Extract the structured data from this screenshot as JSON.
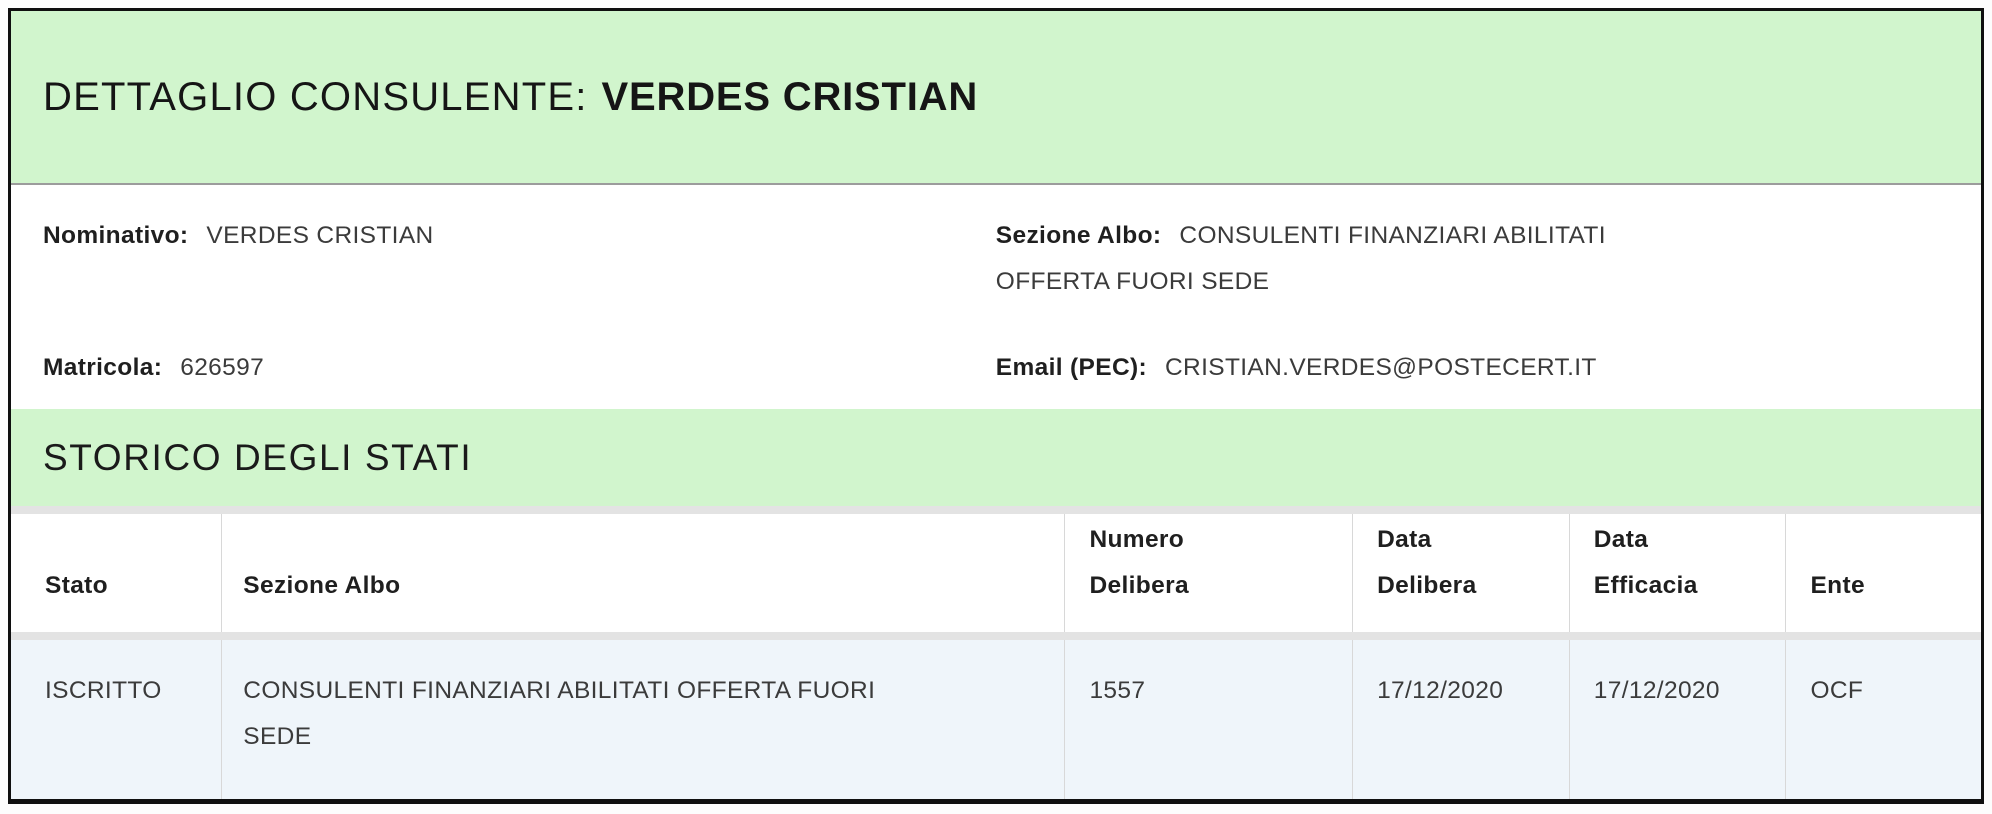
{
  "page": {
    "title_prefix": "DETTAGLIO CONSULENTE:",
    "title_name": "VERDES CRISTIAN"
  },
  "details": {
    "fields": [
      {
        "label": "Nominativo:",
        "value": "VERDES CRISTIAN"
      },
      {
        "label": "Sezione Albo:",
        "value": "CONSULENTI FINANZIARI ABILITATI OFFERTA FUORI SEDE"
      },
      {
        "label": "Matricola:",
        "value": "626597"
      },
      {
        "label": "Email (PEC):",
        "value": "CRISTIAN.VERDES@POSTECERT.IT"
      }
    ]
  },
  "storico": {
    "section_title": "STORICO DEGLI STATI",
    "headers": [
      "Stato",
      "Sezione Albo",
      "Numero\nDelibera",
      "Data\nDelibera",
      "Data\nEfficacia",
      "Ente"
    ],
    "rows": [
      {
        "stato": "ISCRITTO",
        "sezione_albo": "CONSULENTI FINANZIARI ABILITATI OFFERTA FUORI SEDE",
        "numero_delibera": "1557",
        "data_delibera": "17/12/2020",
        "data_efficacia": "17/12/2020",
        "ente": "OCF"
      }
    ]
  },
  "colors": {
    "band_green": "#d1f5cd",
    "row_blue": "#eff5fa",
    "separator_gray": "#e3e3e3",
    "border_black": "#101010"
  }
}
